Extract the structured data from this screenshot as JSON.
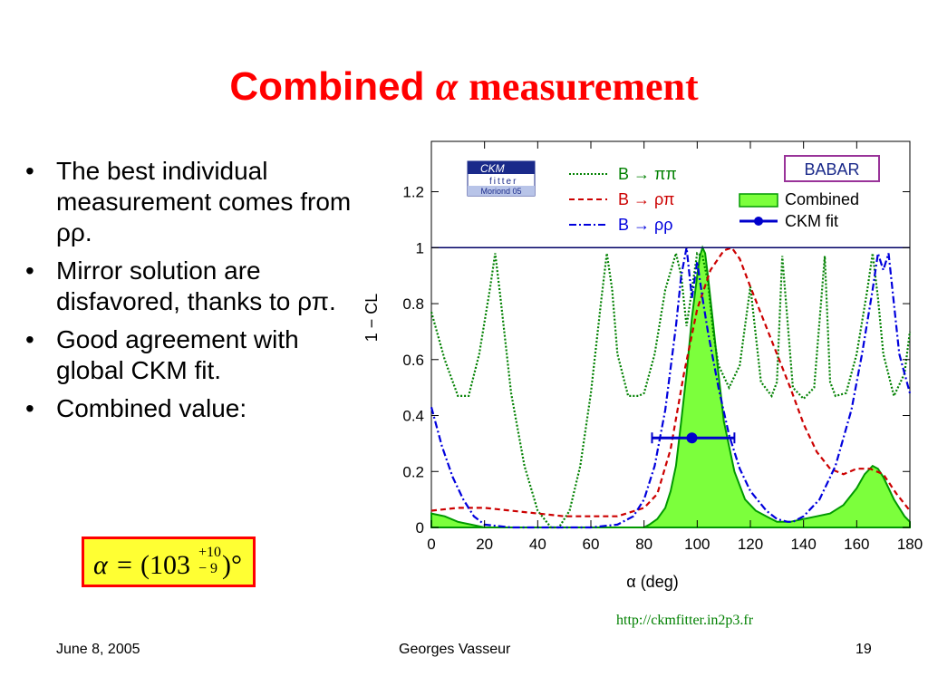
{
  "slide": {
    "title_word": "Combined",
    "title_greek": "α",
    "title_rest": "measurement",
    "bullets": [
      "The best individual measurement comes from ρρ.",
      "Mirror solution are disfavored, thanks to ρπ.",
      "Good agreement with global CKM fit.",
      "Combined value:"
    ],
    "result": {
      "symbol": "α",
      "equals": "=",
      "value": "(103",
      "err_up": "+10",
      "err_down": "− 9",
      "close": ")°"
    },
    "url": "http://ckmfitter.in2p3.fr",
    "footer": {
      "date": "June 8, 2005",
      "author": "Georges Vasseur",
      "page": "19"
    }
  },
  "colors": {
    "title": "#ff0000",
    "pipi": "#008000",
    "rhopi": "#cc0000",
    "rhorho": "#0000dd",
    "combined_fill": "#7cff3c",
    "ckm_fit": "#0000cc"
  },
  "chart_data": {
    "type": "line",
    "xlabel": "α    (deg)",
    "ylabel": "1 − CL",
    "xlim": [
      0,
      180
    ],
    "ylim": [
      0,
      1.38
    ],
    "x_ticks": [
      0,
      20,
      40,
      60,
      80,
      100,
      120,
      140,
      160,
      180
    ],
    "y_ticks": [
      0,
      0.2,
      0.4,
      0.6,
      0.8,
      1,
      1.2
    ],
    "x_tick_labels": [
      "0",
      "20",
      "40",
      "60",
      "80",
      "100",
      "120",
      "140",
      "160",
      "180"
    ],
    "y_tick_labels": [
      "0",
      "0.2",
      "0.4",
      "0.6",
      "0.8",
      "1",
      "1.2"
    ],
    "reference_line_y": 1,
    "logo_text": [
      "CKM",
      "fitter",
      "Moriond 05"
    ],
    "babar_label": "BABAR",
    "legend": [
      {
        "label": "B → ππ",
        "style": "dotted",
        "color": "#008000"
      },
      {
        "label": "B → ρπ",
        "style": "dashed",
        "color": "#cc0000"
      },
      {
        "label": "B → ρρ",
        "style": "dashdot",
        "color": "#0000dd"
      },
      {
        "label": "Combined",
        "style": "fill",
        "color": "#7cff3c"
      },
      {
        "label": "CKM fit",
        "style": "errorbar",
        "color": "#0000cc"
      }
    ],
    "series": [
      {
        "name": "B → ππ",
        "x": [
          0,
          5,
          10,
          14,
          18,
          22,
          24,
          26,
          30,
          35,
          40,
          45,
          48,
          52,
          56,
          60,
          64,
          66,
          68,
          70,
          74,
          78,
          80,
          84,
          88,
          92,
          94,
          96,
          98,
          100,
          102,
          104,
          106,
          108,
          112,
          116,
          118,
          120,
          124,
          128,
          130,
          132,
          136,
          140,
          144,
          148,
          150,
          152,
          156,
          160,
          164,
          166,
          168,
          170,
          174,
          178,
          180
        ],
        "y": [
          0.77,
          0.6,
          0.47,
          0.47,
          0.62,
          0.85,
          0.98,
          0.82,
          0.48,
          0.22,
          0.06,
          0.0,
          0.0,
          0.06,
          0.22,
          0.48,
          0.82,
          0.98,
          0.85,
          0.62,
          0.47,
          0.47,
          0.48,
          0.62,
          0.85,
          0.98,
          0.9,
          0.72,
          0.85,
          0.98,
          0.97,
          0.88,
          0.7,
          0.58,
          0.5,
          0.58,
          0.72,
          0.86,
          0.52,
          0.47,
          0.52,
          0.97,
          0.5,
          0.46,
          0.5,
          0.97,
          0.52,
          0.47,
          0.48,
          0.62,
          0.85,
          0.98,
          0.82,
          0.62,
          0.47,
          0.55,
          0.7
        ]
      },
      {
        "name": "B → ρπ",
        "x": [
          0,
          10,
          20,
          30,
          40,
          50,
          60,
          70,
          80,
          85,
          90,
          95,
          100,
          105,
          110,
          113,
          116,
          120,
          125,
          130,
          135,
          140,
          145,
          150,
          155,
          160,
          165,
          170,
          175,
          180
        ],
        "y": [
          0.06,
          0.07,
          0.07,
          0.06,
          0.05,
          0.04,
          0.04,
          0.04,
          0.07,
          0.12,
          0.28,
          0.55,
          0.78,
          0.92,
          0.99,
          1.0,
          0.96,
          0.86,
          0.74,
          0.62,
          0.5,
          0.37,
          0.27,
          0.21,
          0.19,
          0.21,
          0.21,
          0.19,
          0.12,
          0.06
        ]
      },
      {
        "name": "B → ρρ",
        "x": [
          0,
          4,
          8,
          12,
          16,
          20,
          30,
          40,
          50,
          60,
          70,
          76,
          80,
          84,
          88,
          92,
          94,
          96,
          98,
          100,
          102,
          104,
          108,
          112,
          116,
          120,
          126,
          130,
          134,
          136,
          140,
          146,
          152,
          158,
          162,
          166,
          168,
          170,
          172,
          174,
          176,
          180
        ],
        "y": [
          0.43,
          0.29,
          0.18,
          0.1,
          0.04,
          0.01,
          0.0,
          0.0,
          0.0,
          0.0,
          0.01,
          0.04,
          0.1,
          0.22,
          0.42,
          0.72,
          0.9,
          1.0,
          0.82,
          0.95,
          0.82,
          0.7,
          0.5,
          0.33,
          0.21,
          0.13,
          0.06,
          0.03,
          0.02,
          0.02,
          0.04,
          0.1,
          0.22,
          0.42,
          0.62,
          0.85,
          0.98,
          0.92,
          0.98,
          0.8,
          0.62,
          0.48
        ]
      },
      {
        "name": "Combined",
        "x": [
          0,
          5,
          10,
          15,
          20,
          30,
          40,
          50,
          60,
          70,
          80,
          82,
          85,
          88,
          90,
          92,
          94,
          96,
          98,
          100,
          101,
          102,
          103,
          104,
          106,
          108,
          110,
          114,
          118,
          122,
          126,
          130,
          135,
          140,
          145,
          150,
          155,
          160,
          163,
          166,
          168,
          170,
          174,
          178,
          180
        ],
        "y": [
          0.05,
          0.04,
          0.02,
          0.01,
          0.0,
          0.0,
          0.0,
          0.0,
          0.0,
          0.0,
          0.0,
          0.01,
          0.03,
          0.07,
          0.13,
          0.22,
          0.38,
          0.55,
          0.75,
          0.9,
          0.97,
          1.0,
          0.98,
          0.9,
          0.73,
          0.55,
          0.38,
          0.2,
          0.1,
          0.06,
          0.04,
          0.02,
          0.02,
          0.03,
          0.04,
          0.05,
          0.08,
          0.14,
          0.19,
          0.22,
          0.21,
          0.18,
          0.1,
          0.04,
          0.02
        ]
      }
    ],
    "ckm_fit": {
      "x": 98,
      "y": 0.32,
      "x_low": 83,
      "x_high": 114
    }
  }
}
